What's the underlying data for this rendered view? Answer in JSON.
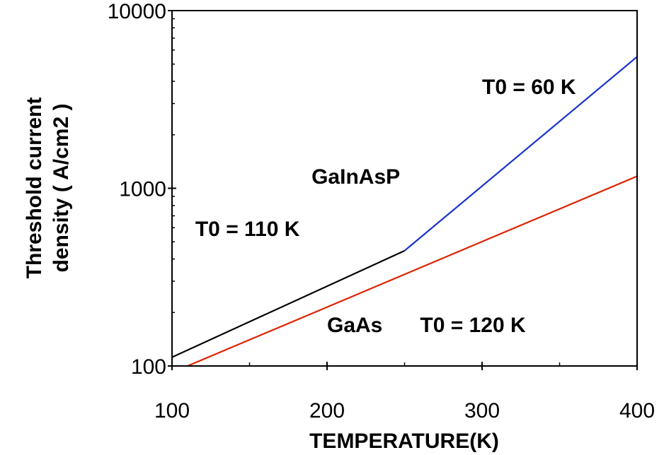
{
  "chart_data": {
    "type": "line",
    "xlabel": "TEMPERATURE(K)",
    "ylabel_line1": "Threshold current",
    "ylabel_line2": "density ( A/cm2 )",
    "x_scale": "linear",
    "y_scale": "log",
    "xlim": [
      100,
      400
    ],
    "ylim": [
      100,
      10000
    ],
    "x_ticks": [
      {
        "value": 100,
        "label": "100"
      },
      {
        "value": 200,
        "label": "200"
      },
      {
        "value": 300,
        "label": "300"
      },
      {
        "value": 400,
        "label": "400"
      }
    ],
    "x_minor_ticks": [
      150,
      250,
      350
    ],
    "y_ticks": [
      {
        "value": 100,
        "label": "100"
      },
      {
        "value": 1000,
        "label": "1000"
      },
      {
        "value": 10000,
        "label": "10000"
      }
    ],
    "grid": false,
    "series": [
      {
        "color": "#000000",
        "x": [
          100,
          250
        ],
        "y": [
          112,
          445
        ]
      },
      {
        "color": "#1a33cc",
        "x": [
          250,
          400
        ],
        "y": [
          445,
          5500
        ]
      },
      {
        "color": "#dd2200",
        "x": [
          110,
          400
        ],
        "y": [
          100,
          1170
        ]
      }
    ],
    "annotations": [
      {
        "key": "t0_60",
        "text": "T0 = 60 K",
        "x": 300,
        "y": 3400
      },
      {
        "key": "gainasp",
        "text": "GaInAsP",
        "x": 190,
        "y": 1060
      },
      {
        "key": "t0_110",
        "text": "T0 = 110 K",
        "x": 115,
        "y": 540
      },
      {
        "key": "gaas",
        "text": "GaAs",
        "x": 200,
        "y": 155
      },
      {
        "key": "t0_120",
        "text": "T0 = 120 K",
        "x": 260,
        "y": 155
      }
    ]
  }
}
